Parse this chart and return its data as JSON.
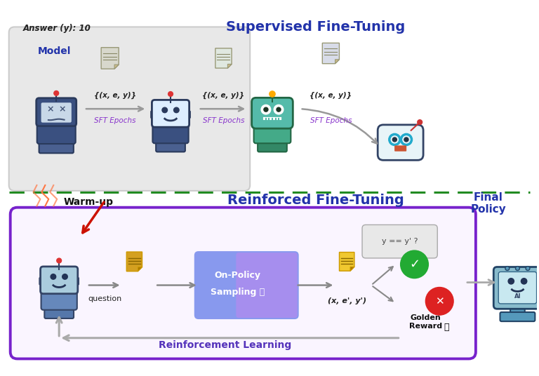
{
  "background_color": "#ffffff",
  "title_sft": "Supervised Fine-Tuning",
  "title_rft": "Reinforced Fine-Tuning",
  "answer_label": "Answer (y): 10",
  "warmup_label": "Warm-up",
  "final_policy_label": "Final\nPolicy",
  "model_label": "Model",
  "question_label": "question",
  "output_label": "(x, e', y')",
  "reward_label": "Golden\nReward",
  "rl_label": "Reinforcement Learning",
  "check_label": "y == y' ?",
  "sft_box_color": "#e8e8e8",
  "sft_box_border": "#cccccc",
  "rft_box_border": "#7722cc",
  "arrow_color_sft": "#999999",
  "arrow_color_red": "#cc2200",
  "arrow_color_gray": "#aaaaaa",
  "divider_color": "#228B22",
  "title_color_sft": "#2233aa",
  "title_color_rft": "#2233aa",
  "warmup_color": "#111111",
  "sft_label_color": "#8833cc",
  "rl_label_color": "#5533bb",
  "green_check": "#22aa33",
  "red_x": "#dd2222",
  "final_policy_color": "#2233aa"
}
